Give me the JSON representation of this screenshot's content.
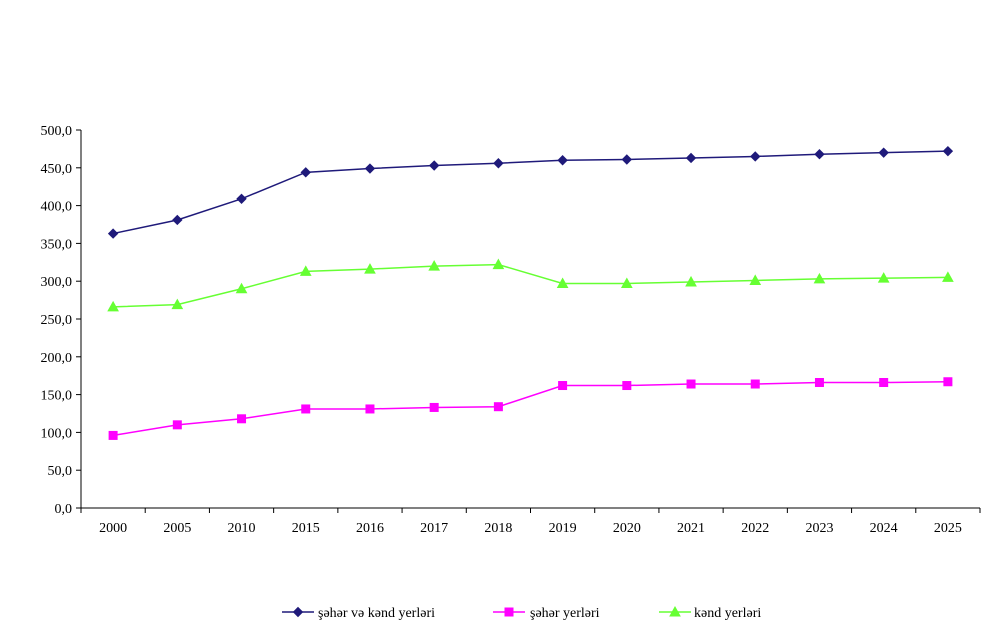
{
  "chart_data": {
    "type": "line",
    "title": "",
    "xlabel": "",
    "ylabel": "",
    "categories": [
      "2000",
      "2005",
      "2010",
      "2015",
      "2016",
      "2017",
      "2018",
      "2019",
      "2020",
      "2021",
      "2022",
      "2023",
      "2024",
      "2025"
    ],
    "ylim": [
      0,
      500
    ],
    "ytick_values": [
      0,
      50,
      100,
      150,
      200,
      250,
      300,
      350,
      400,
      450,
      500
    ],
    "ytick_labels": [
      "0,0",
      "50,0",
      "100,0",
      "150,0",
      "200,0",
      "250,0",
      "300,0",
      "350,0",
      "400,0",
      "450,0",
      "500,0"
    ],
    "grid": false,
    "legend_position": "bottom",
    "series": [
      {
        "name": "şəhər və kənd yerləri",
        "color": "#1f1a7a",
        "marker": "diamond",
        "values": [
          363,
          381,
          409,
          444,
          449,
          453,
          456,
          460,
          461,
          463,
          465,
          468,
          470,
          472
        ]
      },
      {
        "name": "şəhər yerləri",
        "color": "#ff00ff",
        "marker": "square",
        "values": [
          96,
          110,
          118,
          131,
          131,
          133,
          134,
          162,
          162,
          164,
          164,
          166,
          166,
          167
        ]
      },
      {
        "name": "kənd yerləri",
        "color": "#66ff33",
        "marker": "triangle",
        "values": [
          266,
          269,
          290,
          313,
          316,
          320,
          322,
          297,
          297,
          299,
          301,
          303,
          304,
          305
        ]
      }
    ]
  }
}
